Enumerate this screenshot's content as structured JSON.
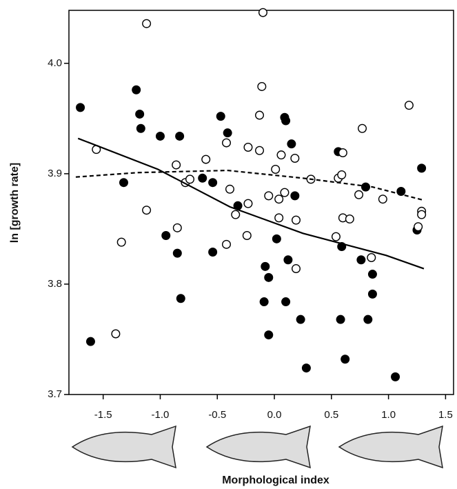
{
  "chart_data": {
    "type": "scatter",
    "y_label": "ln [growth rate]",
    "x_label": "Morphological index",
    "xlim": [
      -1.8,
      1.57
    ],
    "ylim": [
      3.7,
      4.048
    ],
    "xticks": [
      -1.5,
      {
        "value": -1,
        "label": "-1.0"
      },
      -0.5,
      {
        "value": 0,
        "label": "0.0"
      },
      0.5,
      {
        "value": 1,
        "label": "1.0"
      },
      1.5
    ],
    "yticks": [
      3.7,
      3.8,
      3.9,
      {
        "value": 4,
        "label": "4.0"
      }
    ],
    "series": [
      {
        "marker": "filled",
        "color": "#000000",
        "x": [
          -1.7,
          -1.61,
          -1.21,
          -1.18,
          -1.32,
          -1.17,
          -1.0,
          -0.95,
          -0.85,
          -0.83,
          -0.82,
          -0.63,
          -0.54,
          -0.54,
          -0.47,
          -0.41,
          -0.32,
          0.02,
          -0.08,
          -0.05,
          -0.09,
          -0.05,
          0.09,
          0.1,
          0.1,
          0.12,
          0.15,
          0.18,
          0.23,
          0.28,
          0.56,
          0.59,
          0.58,
          0.62,
          0.8,
          0.76,
          0.82,
          0.86,
          0.86,
          1.06,
          1.11,
          1.25,
          1.29
        ],
        "values": [
          3.96,
          3.748,
          3.976,
          3.954,
          3.892,
          3.941,
          3.934,
          3.844,
          3.828,
          3.934,
          3.787,
          3.896,
          3.892,
          3.829,
          3.952,
          3.937,
          3.871,
          3.841,
          3.816,
          3.806,
          3.784,
          3.754,
          3.951,
          3.948,
          3.784,
          3.822,
          3.927,
          3.88,
          3.768,
          3.724,
          3.92,
          3.834,
          3.768,
          3.732,
          3.888,
          3.822,
          3.768,
          3.809,
          3.791,
          3.716,
          3.884,
          3.849,
          3.905
        ]
      },
      {
        "marker": "open",
        "color": "#000000",
        "x": [
          -1.12,
          -1.56,
          -1.34,
          -1.39,
          -1.12,
          -0.86,
          -0.85,
          -0.78,
          -0.74,
          -0.6,
          -0.42,
          -0.42,
          -0.39,
          -0.34,
          -0.24,
          -0.23,
          -0.23,
          -0.13,
          -0.13,
          -0.11,
          -0.1,
          -0.05,
          0.01,
          0.04,
          0.04,
          0.06,
          0.09,
          0.18,
          0.19,
          0.19,
          0.32,
          0.54,
          0.56,
          0.59,
          0.6,
          0.6,
          0.66,
          0.74,
          0.77,
          0.85,
          0.95,
          1.18,
          1.29,
          1.29,
          1.26
        ],
        "values": [
          4.036,
          3.922,
          3.838,
          3.755,
          3.867,
          3.908,
          3.851,
          3.892,
          3.895,
          3.913,
          3.836,
          3.928,
          3.886,
          3.863,
          3.844,
          3.924,
          3.873,
          3.953,
          3.921,
          3.979,
          4.046,
          3.88,
          3.904,
          3.877,
          3.86,
          3.917,
          3.883,
          3.914,
          3.858,
          3.814,
          3.895,
          3.843,
          3.896,
          3.899,
          3.919,
          3.86,
          3.859,
          3.881,
          3.941,
          3.824,
          3.877,
          3.962,
          3.866,
          3.863,
          3.852
        ]
      }
    ],
    "lines": [
      {
        "style": "solid",
        "color": "#000000",
        "x": [
          -1.72,
          -1.02,
          -0.39,
          0.25,
          0.98,
          1.31
        ],
        "values": [
          3.932,
          3.904,
          3.87,
          3.846,
          3.826,
          3.814
        ]
      },
      {
        "style": "dashed",
        "color": "#000000",
        "x": [
          -1.74,
          -1.2,
          -0.41,
          0.25,
          0.86,
          1.31
        ],
        "values": [
          3.897,
          3.901,
          3.903,
          3.896,
          3.888,
          3.876
        ]
      }
    ]
  }
}
